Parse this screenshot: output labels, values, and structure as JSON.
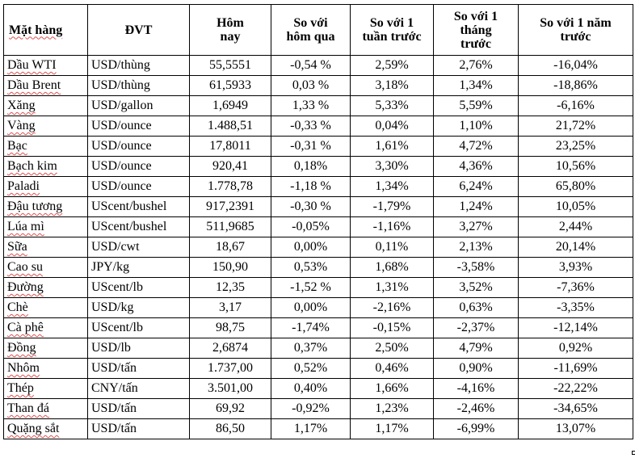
{
  "headers": {
    "item": "Mặt hàng",
    "unit": "ĐVT",
    "today": "Hôm nay",
    "vs_yesterday": "So với hôm qua",
    "vs_week": "So với 1 tuần trước",
    "vs_month": "So với 1 tháng trước",
    "vs_year": "So với 1 năm trước"
  },
  "rows": [
    {
      "item": "Dầu WTI",
      "unit": "USD/thùng",
      "today": "55,5551",
      "d1": "-0,54 %",
      "w1": "2,59%",
      "m1": "2,76%",
      "y1": "-16,04%"
    },
    {
      "item": "Dầu Brent",
      "unit": "USD/thùng",
      "today": "61,5933",
      "d1": "0,03 %",
      "w1": "3,18%",
      "m1": "1,34%",
      "y1": "-18,86%"
    },
    {
      "item": "Xăng",
      "unit": "USD/gallon",
      "today": "1,6949",
      "d1": "1,33 %",
      "w1": "5,33%",
      "m1": "5,59%",
      "y1": "-6,16%"
    },
    {
      "item": "Vàng",
      "unit": "USD/ounce",
      "today": "1.488,51",
      "d1": "-0,33 %",
      "w1": "0,04%",
      "m1": "1,10%",
      "y1": "21,72%"
    },
    {
      "item": "Bạc",
      "unit": "USD/ounce",
      "today": "17,8011",
      "d1": "-0,31 %",
      "w1": "1,61%",
      "m1": "4,72%",
      "y1": "23,25%"
    },
    {
      "item": "Bạch kim",
      "unit": "USD/ounce",
      "today": "920,41",
      "d1": "0,18%",
      "w1": "3,30%",
      "m1": "4,36%",
      "y1": "10,56%"
    },
    {
      "item": "Paladi",
      "unit": "USD/ounce",
      "today": "1.778,78",
      "d1": "-1,18 %",
      "w1": "1,34%",
      "m1": "6,24%",
      "y1": "65,80%"
    },
    {
      "item": "Đậu tương",
      "unit": "UScent/bushel",
      "today": "917,2391",
      "d1": "-0,30 %",
      "w1": "-1,79%",
      "m1": "1,24%",
      "y1": "10,05%"
    },
    {
      "item": "Lúa mì",
      "unit": "UScent/bushel",
      "today": "511,9685",
      "d1": "-0,05%",
      "w1": "-1,16%",
      "m1": "3,27%",
      "y1": "2,44%"
    },
    {
      "item": "Sữa",
      "unit": "USD/cwt",
      "today": "18,67",
      "d1": "0,00%",
      "w1": "0,11%",
      "m1": "2,13%",
      "y1": "20,14%"
    },
    {
      "item": "Cao su",
      "unit": "JPY/kg",
      "today": "150,90",
      "d1": "0,53%",
      "w1": "1,68%",
      "m1": "-3,58%",
      "y1": "3,93%"
    },
    {
      "item": "Đường",
      "unit": "UScent/lb",
      "today": "12,35",
      "d1": "-1,52 %",
      "w1": "1,31%",
      "m1": "3,52%",
      "y1": "-7,36%"
    },
    {
      "item": "Chè",
      "unit": "USD/kg",
      "today": "3,17",
      "d1": "0,00%",
      "w1": "-2,16%",
      "m1": "0,63%",
      "y1": "-3,35%"
    },
    {
      "item": "Cà phê",
      "unit": "UScent/lb",
      "today": "98,75",
      "d1": "-1,74%",
      "w1": "-0,15%",
      "m1": "-2,37%",
      "y1": "-12,14%"
    },
    {
      "item": "Đồng",
      "unit": "USD/lb",
      "today": "2,6874",
      "d1": "0,37%",
      "w1": "2,50%",
      "m1": "4,79%",
      "y1": "0,92%"
    },
    {
      "item": "Nhôm",
      "unit": "USD/tấn",
      "today": "1.737,00",
      "d1": "0,52%",
      "w1": "0,46%",
      "m1": "0,90%",
      "y1": "-11,69%"
    },
    {
      "item": "Thép",
      "unit": "CNY/tấn",
      "today": "3.501,00",
      "d1": "0,40%",
      "w1": "1,66%",
      "m1": "-4,16%",
      "y1": "-22,22%"
    },
    {
      "item": "Than đá",
      "unit": "USD/tấn",
      "today": "69,92",
      "d1": "-0,92%",
      "w1": "1,23%",
      "m1": "-2,46%",
      "y1": "-34,65%"
    },
    {
      "item": "Quặng sắt",
      "unit": "USD/tấn",
      "today": "86,50",
      "d1": "1,17%",
      "w1": "1,17%",
      "m1": "-6,99%",
      "y1": "13,07%"
    }
  ]
}
